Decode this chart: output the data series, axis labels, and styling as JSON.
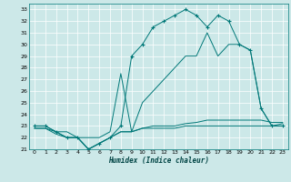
{
  "xlabel": "Humidex (Indice chaleur)",
  "background_color": "#cce8e8",
  "grid_color": "#b0d8d8",
  "line_color": "#007878",
  "xlim": [
    -0.5,
    23.5
  ],
  "ylim": [
    21,
    33.5
  ],
  "yticks": [
    21,
    22,
    23,
    24,
    25,
    26,
    27,
    28,
    29,
    30,
    31,
    32,
    33
  ],
  "xticks": [
    0,
    1,
    2,
    3,
    4,
    5,
    6,
    7,
    8,
    9,
    10,
    11,
    12,
    13,
    14,
    15,
    16,
    17,
    18,
    19,
    20,
    21,
    22,
    23
  ],
  "series": [
    {
      "x": [
        0,
        1,
        2,
        3,
        4,
        5,
        6,
        7,
        8,
        9,
        10,
        11,
        12,
        13,
        14,
        15,
        16,
        17,
        18,
        19,
        20,
        21,
        22,
        23
      ],
      "y": [
        23,
        23,
        22.5,
        22,
        22,
        21,
        21.5,
        22,
        23,
        29,
        30,
        31.5,
        32,
        32.5,
        33,
        32.5,
        31.5,
        32.5,
        32,
        30,
        29.5,
        24.5,
        23,
        23
      ],
      "marker": "+"
    },
    {
      "x": [
        0,
        1,
        2,
        3,
        4,
        5,
        6,
        7,
        8,
        9,
        10,
        11,
        12,
        13,
        14,
        15,
        16,
        17,
        18,
        19,
        20,
        21,
        22,
        23
      ],
      "y": [
        23,
        23,
        22.5,
        22.5,
        22,
        22,
        22,
        22.5,
        27.5,
        22.5,
        25,
        26,
        27,
        28,
        29,
        29,
        31,
        29,
        30,
        30,
        29.5,
        24.5,
        23,
        23.2
      ],
      "marker": null
    },
    {
      "x": [
        0,
        1,
        2,
        3,
        4,
        5,
        6,
        7,
        8,
        9,
        10,
        11,
        12,
        13,
        14,
        15,
        16,
        17,
        18,
        19,
        20,
        21,
        22,
        23
      ],
      "y": [
        22.8,
        22.8,
        22.5,
        22,
        22,
        21,
        21.5,
        22,
        22.5,
        22.5,
        22.8,
        23,
        23,
        23,
        23.2,
        23.3,
        23.5,
        23.5,
        23.5,
        23.5,
        23.5,
        23.5,
        23.3,
        23.3
      ],
      "marker": null
    },
    {
      "x": [
        0,
        1,
        2,
        3,
        4,
        5,
        6,
        7,
        8,
        9,
        10,
        11,
        12,
        13,
        14,
        15,
        16,
        17,
        18,
        19,
        20,
        21,
        22,
        23
      ],
      "y": [
        22.8,
        22.8,
        22.3,
        22,
        22,
        21,
        21.5,
        22,
        22.5,
        22.5,
        22.8,
        22.8,
        22.8,
        22.8,
        23,
        23,
        23,
        23,
        23,
        23,
        23,
        23,
        23,
        23
      ],
      "marker": null
    }
  ]
}
